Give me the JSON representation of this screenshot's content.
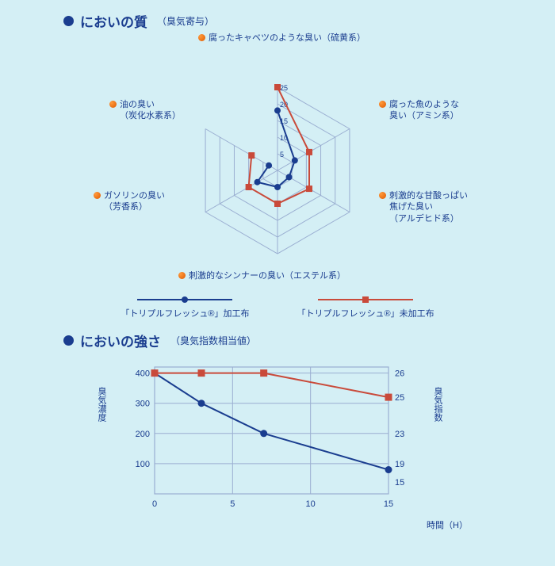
{
  "section1": {
    "title_main": "においの質",
    "title_sub": "（臭気寄与）"
  },
  "section2": {
    "title_main": "においの強さ",
    "title_sub": "（臭気指数相当値）"
  },
  "radar_chart": {
    "type": "radar",
    "max": 25,
    "ticks": [
      5,
      10,
      15,
      20,
      25
    ],
    "grid_color": "#9aaed1",
    "axes": [
      {
        "line1": "腐ったキャベツのような臭い（硫黄系）",
        "line2": ""
      },
      {
        "line1": "腐った魚のような",
        "line2": "臭い（アミン系）"
      },
      {
        "line1": "刺激的な甘酸っぱい",
        "line2": "焦げた臭い",
        "line3": "（アルデヒド系）"
      },
      {
        "line1": "刺激的なシンナーの臭い（エステル系）",
        "line2": ""
      },
      {
        "line1": "ガソリンの臭い",
        "line2": "（芳香系）"
      },
      {
        "line1": "油の臭い",
        "line2": "（炭化水素系）"
      }
    ],
    "series": [
      {
        "name": "kakou",
        "label": "「トリプルフレッシュ®」加工布",
        "color": "#1a3d8f",
        "marker": "circle",
        "values": [
          18,
          6,
          4,
          5,
          7,
          3
        ]
      },
      {
        "name": "mikakou",
        "label": "「トリプルフレッシュ®」未加工布",
        "color": "#c94a3a",
        "marker": "square",
        "values": [
          25,
          11,
          11,
          10,
          10,
          9
        ]
      }
    ]
  },
  "line_chart": {
    "type": "line",
    "y_left_label": "臭気濃度",
    "y_right_label": "臭気指数",
    "x_label": "時間（H）",
    "x_ticks": [
      0,
      5,
      10,
      15
    ],
    "y_left_ticks": [
      100,
      200,
      300,
      400
    ],
    "y_right_values": [
      26,
      25,
      23,
      19,
      15
    ],
    "grid_color": "#9aaed1",
    "series": [
      {
        "name": "kakou",
        "color": "#1a3d8f",
        "marker": "circle",
        "points": [
          [
            0,
            400
          ],
          [
            3,
            300
          ],
          [
            7,
            200
          ],
          [
            15,
            80
          ]
        ]
      },
      {
        "name": "mikakou",
        "color": "#c94a3a",
        "marker": "square",
        "points": [
          [
            0,
            400
          ],
          [
            3,
            400
          ],
          [
            7,
            400
          ],
          [
            15,
            320
          ]
        ]
      }
    ]
  }
}
